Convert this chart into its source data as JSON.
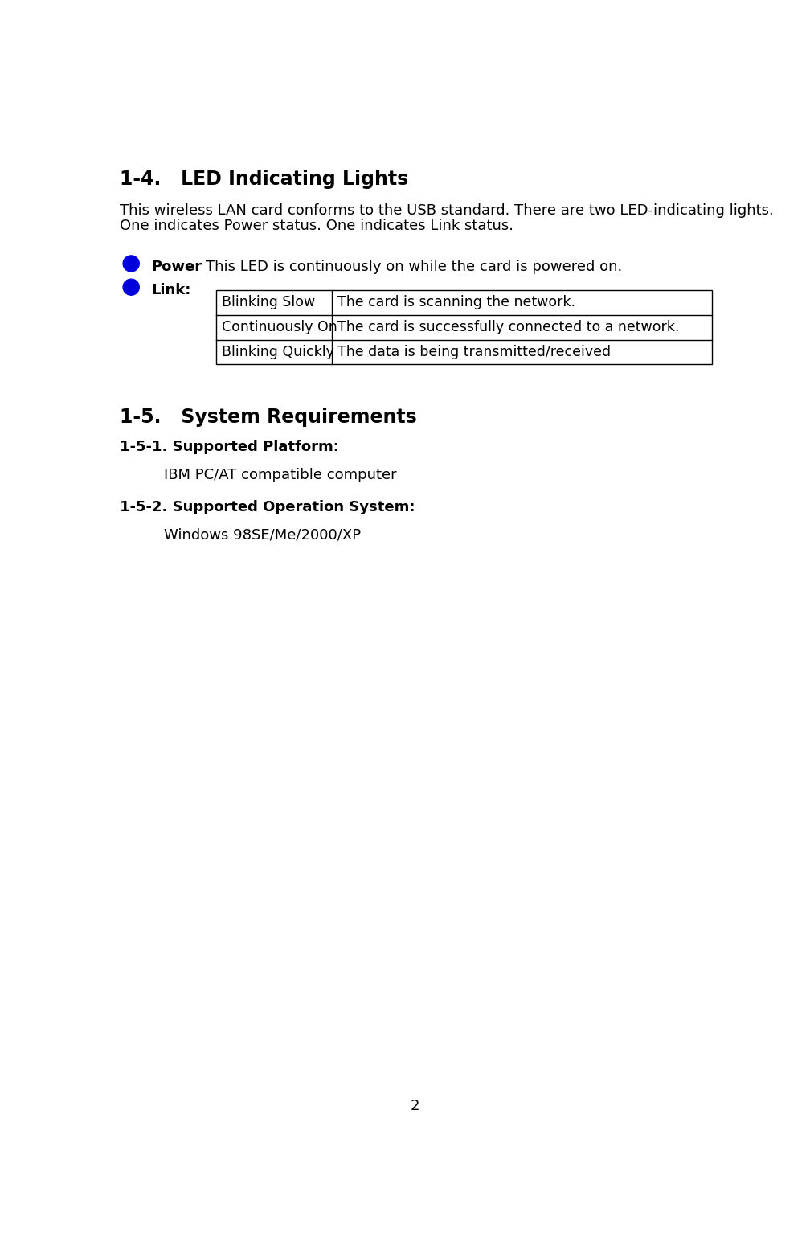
{
  "bg_color": "#ffffff",
  "title": "1-4.   LED Indicating Lights",
  "intro_line1": "This wireless LAN card conforms to the USB standard. There are two LED-indicating lights.",
  "intro_line2": "One indicates Power status. One indicates Link status.",
  "power_label": "Power",
  "power_colon": ":",
  "power_text": "   This LED is continuously on while the card is powered on.",
  "link_label": "Link:",
  "table_headers": [
    "Blinking Slow",
    "Continuously On",
    "Blinking Quickly"
  ],
  "table_values": [
    "The card is scanning the network.",
    "The card is successfully connected to a network.",
    "The data is being transmitted/received"
  ],
  "section2_title": "1-5.   System Requirements",
  "subsec1_title": "1-5-1. Supported Platform:",
  "subsec1_text": "IBM PC/AT compatible computer",
  "subsec2_title": "1-5-2. Supported Operation System:",
  "subsec2_text": "Windows 98SE/Me/2000/XP",
  "page_number": "2",
  "led_color": "#0000dd",
  "text_color": "#000000",
  "font_size_title": 17,
  "font_size_body": 13,
  "font_size_table": 12.5,
  "font_size_page": 13
}
